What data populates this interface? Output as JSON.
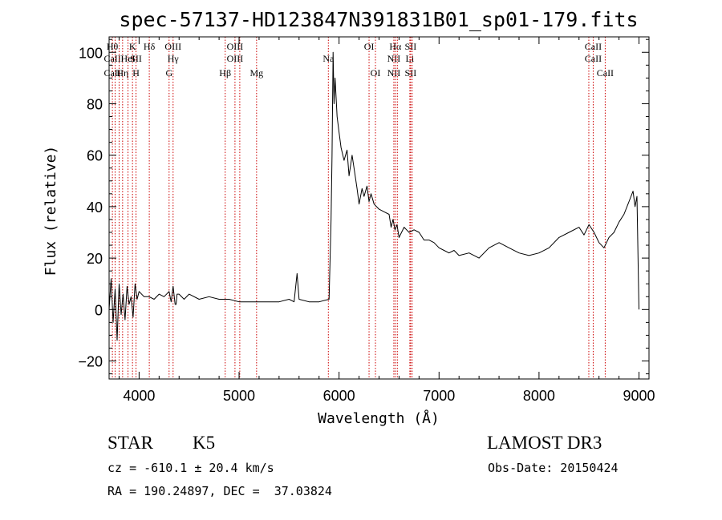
{
  "chart_data": {
    "type": "line",
    "title": "spec-57137-HD123847N391831B01_sp01-179.fits",
    "xlabel": "Wavelength (Å)",
    "ylabel": "Flux (relative)",
    "xlim": [
      3700,
      9100
    ],
    "ylim": [
      -27,
      106
    ],
    "xticks": [
      4000,
      5000,
      6000,
      7000,
      8000,
      9000
    ],
    "yticks": [
      -20,
      0,
      20,
      40,
      60,
      80,
      100
    ],
    "grid": false,
    "line_color": "#000000",
    "marker_color": "#cc0000",
    "series": [
      {
        "x": [
          3700,
          3720,
          3740,
          3760,
          3780,
          3800,
          3820,
          3840,
          3860,
          3880,
          3900,
          3920,
          3940,
          3960,
          3980,
          4000,
          4050,
          4100,
          4150,
          4200,
          4250,
          4300,
          4320,
          4340,
          4360,
          4370,
          4380,
          4400,
          4450,
          4500,
          4600,
          4700,
          4800,
          4900,
          5000,
          5100,
          5200,
          5300,
          5400,
          5500,
          5550,
          5580,
          5600,
          5700,
          5800,
          5900,
          5920,
          5930,
          5940,
          5950,
          5960,
          5980,
          6000,
          6020,
          6050,
          6080,
          6100,
          6130,
          6150,
          6180,
          6200,
          6230,
          6250,
          6280,
          6300,
          6320,
          6350,
          6400,
          6450,
          6500,
          6520,
          6540,
          6560,
          6580,
          6600,
          6650,
          6700,
          6750,
          6800,
          6850,
          6900,
          6950,
          7000,
          7050,
          7100,
          7150,
          7200,
          7300,
          7400,
          7500,
          7600,
          7700,
          7800,
          7900,
          8000,
          8100,
          8200,
          8300,
          8400,
          8450,
          8500,
          8550,
          8600,
          8650,
          8700,
          8750,
          8800,
          8850,
          8900,
          8940,
          8960,
          8980,
          8995,
          9000
        ],
        "y": [
          0,
          12,
          -5,
          8,
          -12,
          10,
          -2,
          6,
          -4,
          9,
          2,
          5,
          -3,
          10,
          4,
          7,
          5,
          5,
          4,
          6,
          5,
          7,
          3,
          9,
          2,
          2,
          6,
          6,
          4,
          6,
          4,
          5,
          4,
          4,
          3,
          3,
          3,
          3,
          3,
          4,
          3,
          14,
          4,
          3,
          3,
          4,
          35,
          60,
          100,
          80,
          90,
          75,
          69,
          63,
          58,
          62,
          52,
          60,
          55,
          47,
          41,
          47,
          44,
          48,
          42,
          45,
          41,
          39,
          38,
          37,
          32,
          35,
          31,
          33,
          28,
          32,
          30,
          31,
          30,
          27,
          27,
          26,
          24,
          23,
          22,
          23,
          21,
          22,
          20,
          24,
          26,
          24,
          22,
          21,
          22,
          24,
          28,
          30,
          32,
          29,
          33,
          30,
          26,
          24,
          28,
          30,
          34,
          37,
          42,
          46,
          40,
          44,
          10,
          0
        ]
      }
    ],
    "markers": [
      {
        "x": 3733,
        "rows": [
          [
            "H",
            "θ"
          ],
          [
            "Ca",
            "II"
          ],
          [
            "Ca",
            "II"
          ]
        ]
      },
      {
        "x": 3760
      },
      {
        "x": 3800
      },
      {
        "x": 3835,
        "rows": [
          null,
          null,
          [
            "H",
            "η"
          ]
        ]
      },
      {
        "x": 3889,
        "rows": [
          null,
          [
            "He",
            "I"
          ],
          null
        ]
      },
      {
        "x": 3934,
        "rows": [
          [
            "K",
            ""
          ],
          null,
          null
        ]
      },
      {
        "x": 3969,
        "rows": [
          null,
          [
            "S",
            "II"
          ],
          [
            "H",
            ""
          ]
        ]
      },
      {
        "x": 4102,
        "rows": [
          [
            "H",
            "δ"
          ],
          null,
          null
        ]
      },
      {
        "x": 4300,
        "rows": [
          null,
          null,
          [
            "G",
            ""
          ]
        ]
      },
      {
        "x": 4340,
        "rows": [
          [
            "O",
            "III"
          ],
          [
            "H",
            "γ"
          ],
          null
        ]
      },
      {
        "x": 4861,
        "rows": [
          null,
          null,
          [
            "H",
            "β"
          ]
        ]
      },
      {
        "x": 4959,
        "rows": [
          [
            "O",
            "III"
          ],
          [
            "O",
            "III"
          ],
          null
        ]
      },
      {
        "x": 5007
      },
      {
        "x": 5175,
        "rows": [
          null,
          null,
          [
            "Mg",
            ""
          ]
        ]
      },
      {
        "x": 5893,
        "rows": [
          null,
          [
            "Na",
            ""
          ],
          null
        ]
      },
      {
        "x": 6300,
        "rows": [
          [
            "O",
            "I"
          ],
          null,
          null
        ]
      },
      {
        "x": 6364,
        "rows": [
          null,
          null,
          [
            "O",
            "I"
          ]
        ]
      },
      {
        "x": 6548,
        "rows": [
          null,
          [
            "N",
            "II"
          ],
          [
            "N",
            "II"
          ]
        ]
      },
      {
        "x": 6563,
        "rows": [
          [
            "H",
            "α"
          ],
          null,
          null
        ]
      },
      {
        "x": 6583
      },
      {
        "x": 6708,
        "rows": [
          null,
          [
            "Li",
            ""
          ],
          null
        ]
      },
      {
        "x": 6716,
        "rows": [
          [
            "S",
            "II"
          ],
          null,
          [
            "S",
            "II"
          ]
        ]
      },
      {
        "x": 6731
      },
      {
        "x": 8498
      },
      {
        "x": 8542,
        "rows": [
          [
            "Ca",
            "II"
          ],
          [
            "Ca",
            "II"
          ],
          null
        ]
      },
      {
        "x": 8662,
        "rows": [
          null,
          null,
          [
            "Ca",
            "II"
          ]
        ]
      }
    ]
  },
  "info": {
    "type_label": "STAR",
    "subclass": "K5",
    "survey": "LAMOST DR3",
    "cz": "cz = -610.1 ± 20.4 km/s",
    "obs_date": "Obs-Date: 20150424",
    "coords": "RA = 190.24897, DEC =  37.03824"
  }
}
